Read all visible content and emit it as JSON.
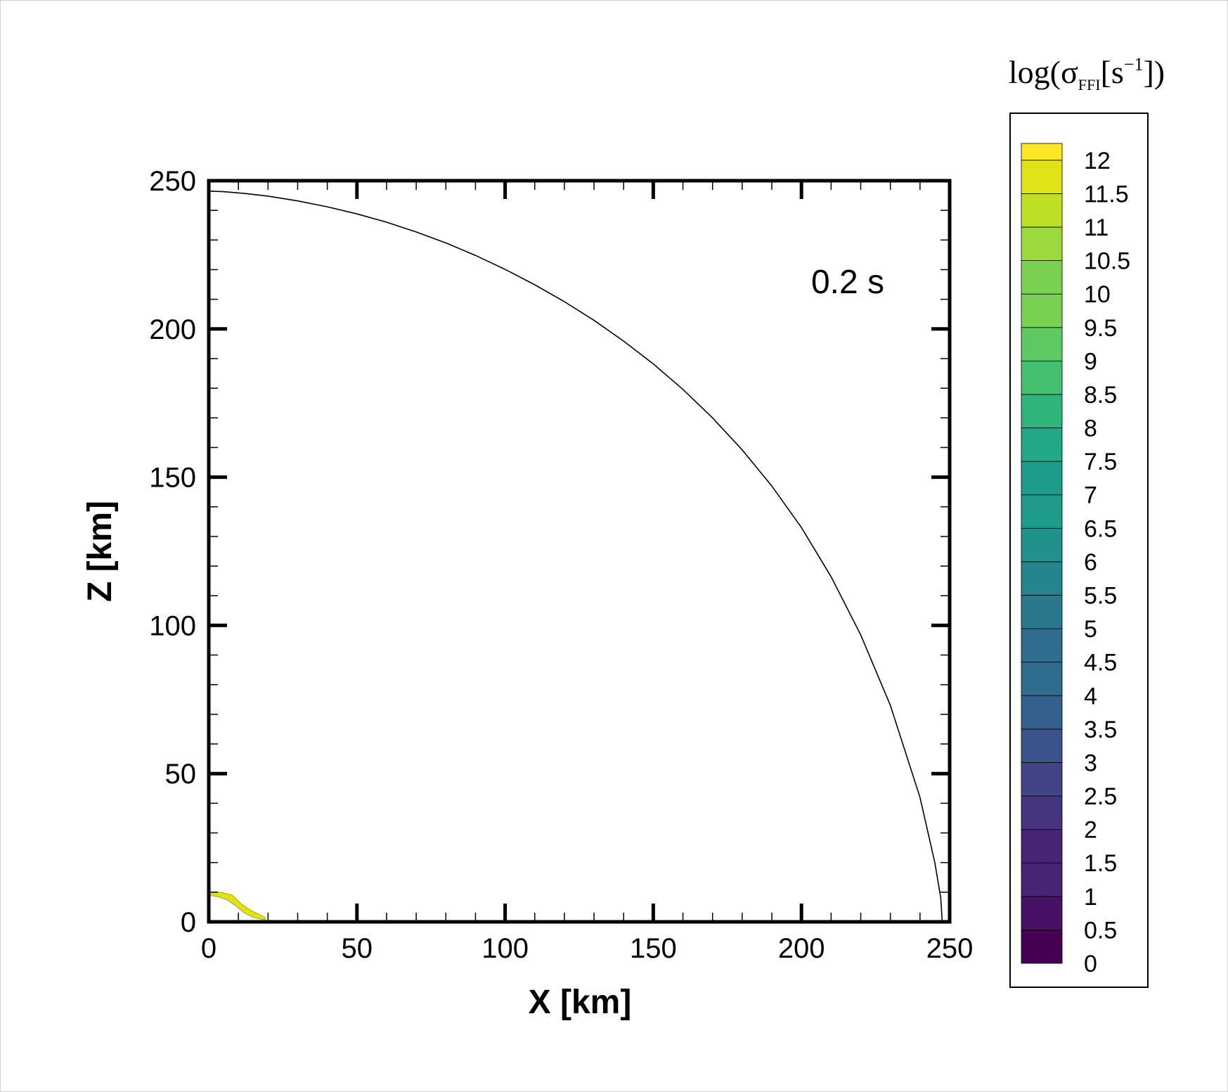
{
  "chart_data": {
    "type": "contour",
    "xlabel": "X [km]",
    "ylabel": "Z [km]",
    "xlim": [
      0,
      250
    ],
    "ylim": [
      0,
      250
    ],
    "x_ticks": [
      0,
      50,
      100,
      150,
      200,
      250
    ],
    "y_ticks": [
      0,
      50,
      100,
      150,
      200,
      250
    ],
    "x_tick_labels": [
      "0",
      "50",
      "100",
      "150",
      "200",
      "250"
    ],
    "y_tick_labels": [
      "0",
      "50",
      "100",
      "150",
      "200",
      "250"
    ],
    "annotation": "0.2 s",
    "boundary_curve": {
      "x": [
        0,
        5,
        12,
        20,
        30,
        40,
        50,
        60,
        70,
        80,
        90,
        100,
        110,
        120,
        130,
        140,
        150,
        160,
        170,
        180,
        190,
        200,
        210,
        220,
        230,
        240,
        245,
        247,
        247.5
      ],
      "y": [
        246.5,
        246.3,
        245.7,
        244.8,
        243.2,
        241.2,
        238.8,
        236.0,
        232.7,
        229.0,
        224.8,
        220.1,
        214.9,
        209.2,
        202.9,
        195.9,
        188.2,
        179.6,
        170.0,
        159.2,
        147.0,
        133.0,
        116.4,
        96.8,
        73.0,
        42.0,
        20.0,
        8.0,
        0
      ]
    },
    "colored_region": {
      "x": [
        0,
        4,
        8,
        11,
        14,
        17,
        19,
        19,
        15,
        12,
        9,
        6,
        3,
        0
      ],
      "y": [
        10,
        10,
        9,
        6,
        4,
        2.5,
        1.5,
        0.6,
        1.5,
        3,
        5.5,
        7.5,
        8.5,
        9
      ],
      "log_value": 11.5
    },
    "colorbar": {
      "title": {
        "pre": "log(σ",
        "sub": "FFI",
        "unit_open": "[s",
        "sup": "−1",
        "close": "])"
      },
      "min": 0,
      "max": 12.25,
      "levels": [
        "0",
        "0.5",
        "1",
        "1.5",
        "2",
        "2.5",
        "3",
        "3.5",
        "4",
        "4.5",
        "5",
        "5.5",
        "6",
        "6.5",
        "7",
        "7.5",
        "8",
        "8.5",
        "9",
        "9.5",
        "10",
        "10.5",
        "11",
        "11.5",
        "12"
      ],
      "colormap": "viridis",
      "colors": [
        "#440154",
        "#471265",
        "#482475",
        "#463480",
        "#414487",
        "#3b528b",
        "#355f8d",
        "#2f6c8e",
        "#2a788e",
        "#25848e",
        "#21918c",
        "#1e9c89",
        "#22a884",
        "#2fb47c",
        "#44bf70",
        "#5ec962",
        "#7ad151",
        "#9bd93c",
        "#bddf26",
        "#dfe318",
        "#fde725"
      ]
    }
  }
}
